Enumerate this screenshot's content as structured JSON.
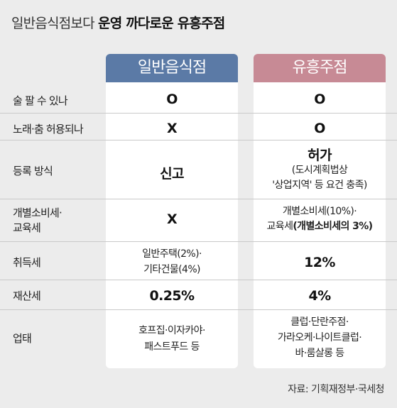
{
  "title": {
    "prefix": "일반음식점보다 ",
    "emphasis": "운영 까다로운 유흥주점"
  },
  "columns": {
    "general": "일반음식점",
    "entertainment": "유흥주점"
  },
  "rows": [
    {
      "label": "술 팔 수 있나",
      "general": "O",
      "entertainment": "O"
    },
    {
      "label": "노래·춤 허용되나",
      "general": "X",
      "entertainment": "O"
    },
    {
      "label": "등록 방식",
      "general": "신고",
      "entertainment_main": "허가",
      "entertainment_note1": "(도시계획법상",
      "entertainment_note2": "'상업지역' 등 요건 충족)"
    },
    {
      "label_line1": "개별소비세·",
      "label_line2": "교육세",
      "general": "X",
      "entertainment_line1": "개별소비세(10%)·",
      "entertainment_line2_prefix": "교육세",
      "entertainment_line2_bold": "(개별소비세의 3%)"
    },
    {
      "label": "취득세",
      "general_line1": "일반주택(2%)·",
      "general_line2": "기타건물(4%)",
      "entertainment": "12%"
    },
    {
      "label": "재산세",
      "general": "0.25%",
      "entertainment": "4%"
    },
    {
      "label": "업태",
      "general_line1": "호프집·이자카야·",
      "general_line2": "패스트푸드 등",
      "entertainment_line1": "클럽·단란주점·",
      "entertainment_line2": "가라오케·나이트클럽·",
      "entertainment_line3": "바·룸살롱 등"
    }
  ],
  "source": "자료: 기획재정부·국세청"
}
